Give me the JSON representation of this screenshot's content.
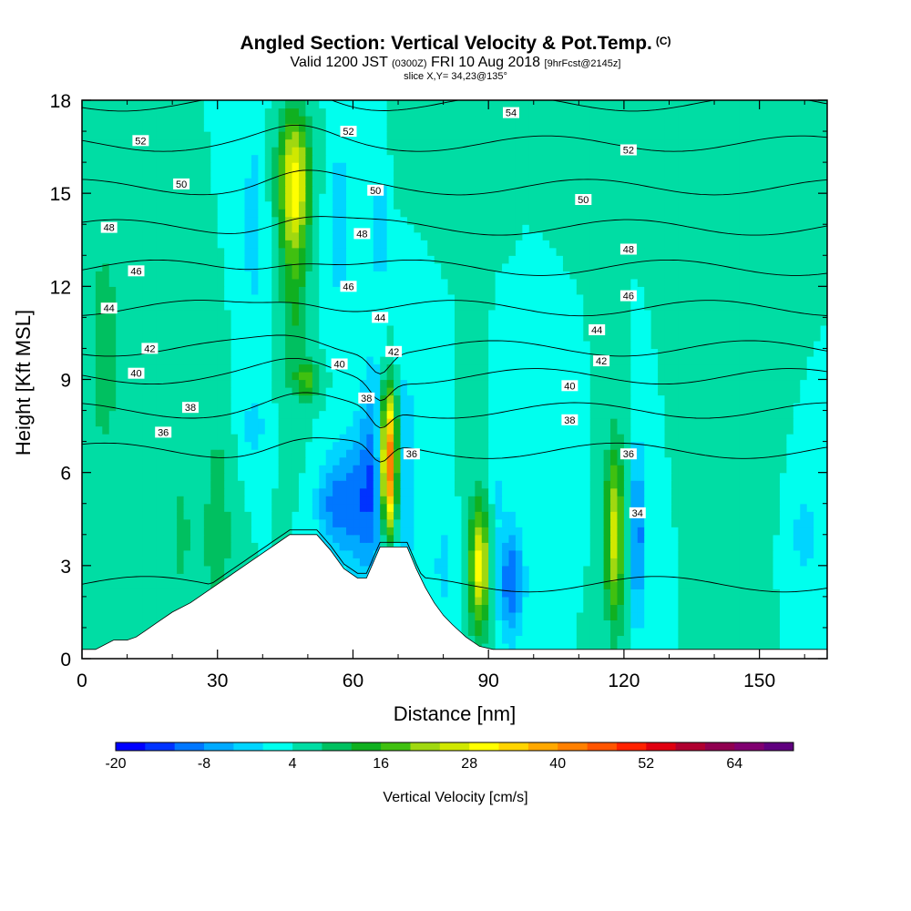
{
  "header": {
    "title": "Angled Section: Vertical Velocity & Pot.Temp.",
    "title_units": "(C)",
    "valid_prefix": "Valid 1200 JST",
    "valid_utc": "(0300Z)",
    "valid_date": "FRI 10 Aug 2018",
    "forecast": "[9hrFcst@2145z]",
    "slice": "slice X,Y= 34,23@135°"
  },
  "chart_data": {
    "type": "heatmap",
    "xlabel": "Distance [nm]",
    "ylabel": "Height [Kft MSL]",
    "xlim": [
      0,
      165
    ],
    "ylim": [
      0,
      18
    ],
    "xticks": [
      0,
      30,
      60,
      90,
      120,
      150
    ],
    "yticks": [
      0,
      3,
      6,
      9,
      12,
      15,
      18
    ],
    "background_velocity": 4,
    "colorbar": {
      "title": "Vertical Velocity [cm/s]",
      "min": -20,
      "max": 72,
      "step": 4,
      "tick_values": [
        -20,
        -8,
        4,
        16,
        28,
        40,
        52,
        64
      ],
      "colors": [
        "#0000ff",
        "#0033ff",
        "#0077ff",
        "#00aaff",
        "#00d5ff",
        "#00ffee",
        "#00dda4",
        "#00c060",
        "#10b020",
        "#40c010",
        "#a0d810",
        "#d0e800",
        "#ffff00",
        "#ffd400",
        "#ffa800",
        "#ff8000",
        "#ff5500",
        "#ff2200",
        "#e00010",
        "#b00030",
        "#900050",
        "#800070",
        "#60007f"
      ]
    },
    "terrain": [
      [
        0,
        0.3
      ],
      [
        3,
        0.3
      ],
      [
        7,
        0.6
      ],
      [
        10,
        0.6
      ],
      [
        12,
        0.7
      ],
      [
        14,
        0.9
      ],
      [
        17,
        1.2
      ],
      [
        20,
        1.5
      ],
      [
        24,
        1.8
      ],
      [
        28,
        2.2
      ],
      [
        32,
        2.6
      ],
      [
        36,
        3.0
      ],
      [
        40,
        3.4
      ],
      [
        43,
        3.7
      ],
      [
        46,
        4.0
      ],
      [
        52,
        4.0
      ],
      [
        55,
        3.5
      ],
      [
        58,
        2.9
      ],
      [
        61,
        2.6
      ],
      [
        63,
        2.6
      ],
      [
        66,
        3.6
      ],
      [
        72,
        3.6
      ],
      [
        74,
        2.9
      ],
      [
        76,
        2.3
      ],
      [
        78,
        1.8
      ],
      [
        80,
        1.4
      ],
      [
        82,
        1.1
      ],
      [
        85,
        0.7
      ],
      [
        88,
        0.4
      ],
      [
        91,
        0.3
      ],
      [
        165,
        0.3
      ]
    ],
    "vertical_velocity_features": [
      {
        "x": 68,
        "y": 6.3,
        "peak": 50,
        "sigma_x": 1.4,
        "sigma_y": 1.7
      },
      {
        "x": 65,
        "y": 6.0,
        "peak": -14,
        "sigma_x": 2.5,
        "sigma_y": 2.5
      },
      {
        "x": 71,
        "y": 6.0,
        "peak": -10,
        "sigma_x": 2.0,
        "sigma_y": 2.5
      },
      {
        "x": 60,
        "y": 5.0,
        "peak": -12,
        "sigma_x": 3.0,
        "sigma_y": 1.5
      },
      {
        "x": 55,
        "y": 5.0,
        "peak": -10,
        "sigma_x": 2.5,
        "sigma_y": 1.0
      },
      {
        "x": 47,
        "y": 15.5,
        "peak": 22,
        "sigma_x": 2.5,
        "sigma_y": 1.5
      },
      {
        "x": 47,
        "y": 12.5,
        "peak": 10,
        "sigma_x": 2.0,
        "sigma_y": 2.5
      },
      {
        "x": 38,
        "y": 14.0,
        "peak": -6,
        "sigma_x": 2.0,
        "sigma_y": 2.5
      },
      {
        "x": 57,
        "y": 14.0,
        "peak": -6,
        "sigma_x": 2.0,
        "sigma_y": 2.5
      },
      {
        "x": 66,
        "y": 14.0,
        "peak": -8,
        "sigma_x": 1.0,
        "sigma_y": 1.5
      },
      {
        "x": 88,
        "y": 3.0,
        "peak": 26,
        "sigma_x": 1.5,
        "sigma_y": 1.4
      },
      {
        "x": 95,
        "y": 2.5,
        "peak": -16,
        "sigma_x": 2.0,
        "sigma_y": 1.3
      },
      {
        "x": 92,
        "y": 5.5,
        "peak": -4,
        "sigma_x": 1.0,
        "sigma_y": 1.0
      },
      {
        "x": 118,
        "y": 4.0,
        "peak": 22,
        "sigma_x": 1.5,
        "sigma_y": 2.0
      },
      {
        "x": 123,
        "y": 4.0,
        "peak": -14,
        "sigma_x": 1.4,
        "sigma_y": 2.0
      },
      {
        "x": 80,
        "y": 3.0,
        "peak": -6,
        "sigma_x": 1.5,
        "sigma_y": 1.0
      },
      {
        "x": 38,
        "y": 7.5,
        "peak": -6,
        "sigma_x": 2.0,
        "sigma_y": 0.8
      },
      {
        "x": 50,
        "y": 9.0,
        "peak": 12,
        "sigma_x": 2.0,
        "sigma_y": 0.4
      },
      {
        "x": 30,
        "y": 4.0,
        "peak": 8,
        "sigma_x": 2.0,
        "sigma_y": 2.5
      },
      {
        "x": 22,
        "y": 4.0,
        "peak": 5,
        "sigma_x": 2.0,
        "sigma_y": 2.0
      },
      {
        "x": 5,
        "y": 10.0,
        "peak": 6,
        "sigma_x": 3.0,
        "sigma_y": 3.0
      },
      {
        "x": 150,
        "y": 10.0,
        "peak": 4,
        "sigma_x": 3.0,
        "sigma_y": 4.0
      },
      {
        "x": 140,
        "y": 15.0,
        "peak": 3,
        "sigma_x": 5.0,
        "sigma_y": 2.0
      },
      {
        "x": 160,
        "y": 4.0,
        "peak": -5,
        "sigma_x": 3.0,
        "sigma_y": 1.5
      },
      {
        "x": 105,
        "y": 6.0,
        "peak": -3,
        "sigma_x": 3.0,
        "sigma_y": 1.0
      },
      {
        "x": 75,
        "y": 17.0,
        "peak": 4,
        "sigma_x": 3.0,
        "sigma_y": 1.0
      }
    ],
    "isentrope_baselines": [
      {
        "theta": 34,
        "height": 2.4
      },
      {
        "theta": 36,
        "height": 6.7
      },
      {
        "theta": 38,
        "height": 8.0
      },
      {
        "theta": 40,
        "height": 9.1
      },
      {
        "theta": 42,
        "height": 10.0
      },
      {
        "theta": 44,
        "height": 11.3
      },
      {
        "theta": 46,
        "height": 12.6
      },
      {
        "theta": 48,
        "height": 13.9
      },
      {
        "theta": 50,
        "height": 15.2
      },
      {
        "theta": 52,
        "height": 16.6
      },
      {
        "theta": 54,
        "height": 17.9
      }
    ],
    "isentrope_labels": [
      {
        "text": "52",
        "x": 13,
        "y": 16.7
      },
      {
        "text": "52",
        "x": 59,
        "y": 17.0
      },
      {
        "text": "54",
        "x": 95,
        "y": 17.6
      },
      {
        "text": "52",
        "x": 121,
        "y": 16.4
      },
      {
        "text": "50",
        "x": 22,
        "y": 15.3
      },
      {
        "text": "50",
        "x": 65,
        "y": 15.1
      },
      {
        "text": "50",
        "x": 111,
        "y": 14.8
      },
      {
        "text": "48",
        "x": 6,
        "y": 13.9
      },
      {
        "text": "48",
        "x": 62,
        "y": 13.7
      },
      {
        "text": "48",
        "x": 121,
        "y": 13.2
      },
      {
        "text": "46",
        "x": 12,
        "y": 12.5
      },
      {
        "text": "46",
        "x": 59,
        "y": 12.0
      },
      {
        "text": "46",
        "x": 121,
        "y": 11.7
      },
      {
        "text": "44",
        "x": 6,
        "y": 11.3
      },
      {
        "text": "44",
        "x": 66,
        "y": 11.0
      },
      {
        "text": "44",
        "x": 114,
        "y": 10.6
      },
      {
        "text": "42",
        "x": 15,
        "y": 10.0
      },
      {
        "text": "42",
        "x": 69,
        "y": 9.9
      },
      {
        "text": "42",
        "x": 115,
        "y": 9.6
      },
      {
        "text": "40",
        "x": 12,
        "y": 9.2
      },
      {
        "text": "40",
        "x": 57,
        "y": 9.5
      },
      {
        "text": "40",
        "x": 108,
        "y": 8.8
      },
      {
        "text": "38",
        "x": 24,
        "y": 8.1
      },
      {
        "text": "38",
        "x": 63,
        "y": 8.4
      },
      {
        "text": "38",
        "x": 108,
        "y": 7.7
      },
      {
        "text": "36",
        "x": 18,
        "y": 7.3
      },
      {
        "text": "36",
        "x": 73,
        "y": 6.6
      },
      {
        "text": "36",
        "x": 121,
        "y": 6.6
      },
      {
        "text": "34",
        "x": 123,
        "y": 4.7
      }
    ]
  }
}
